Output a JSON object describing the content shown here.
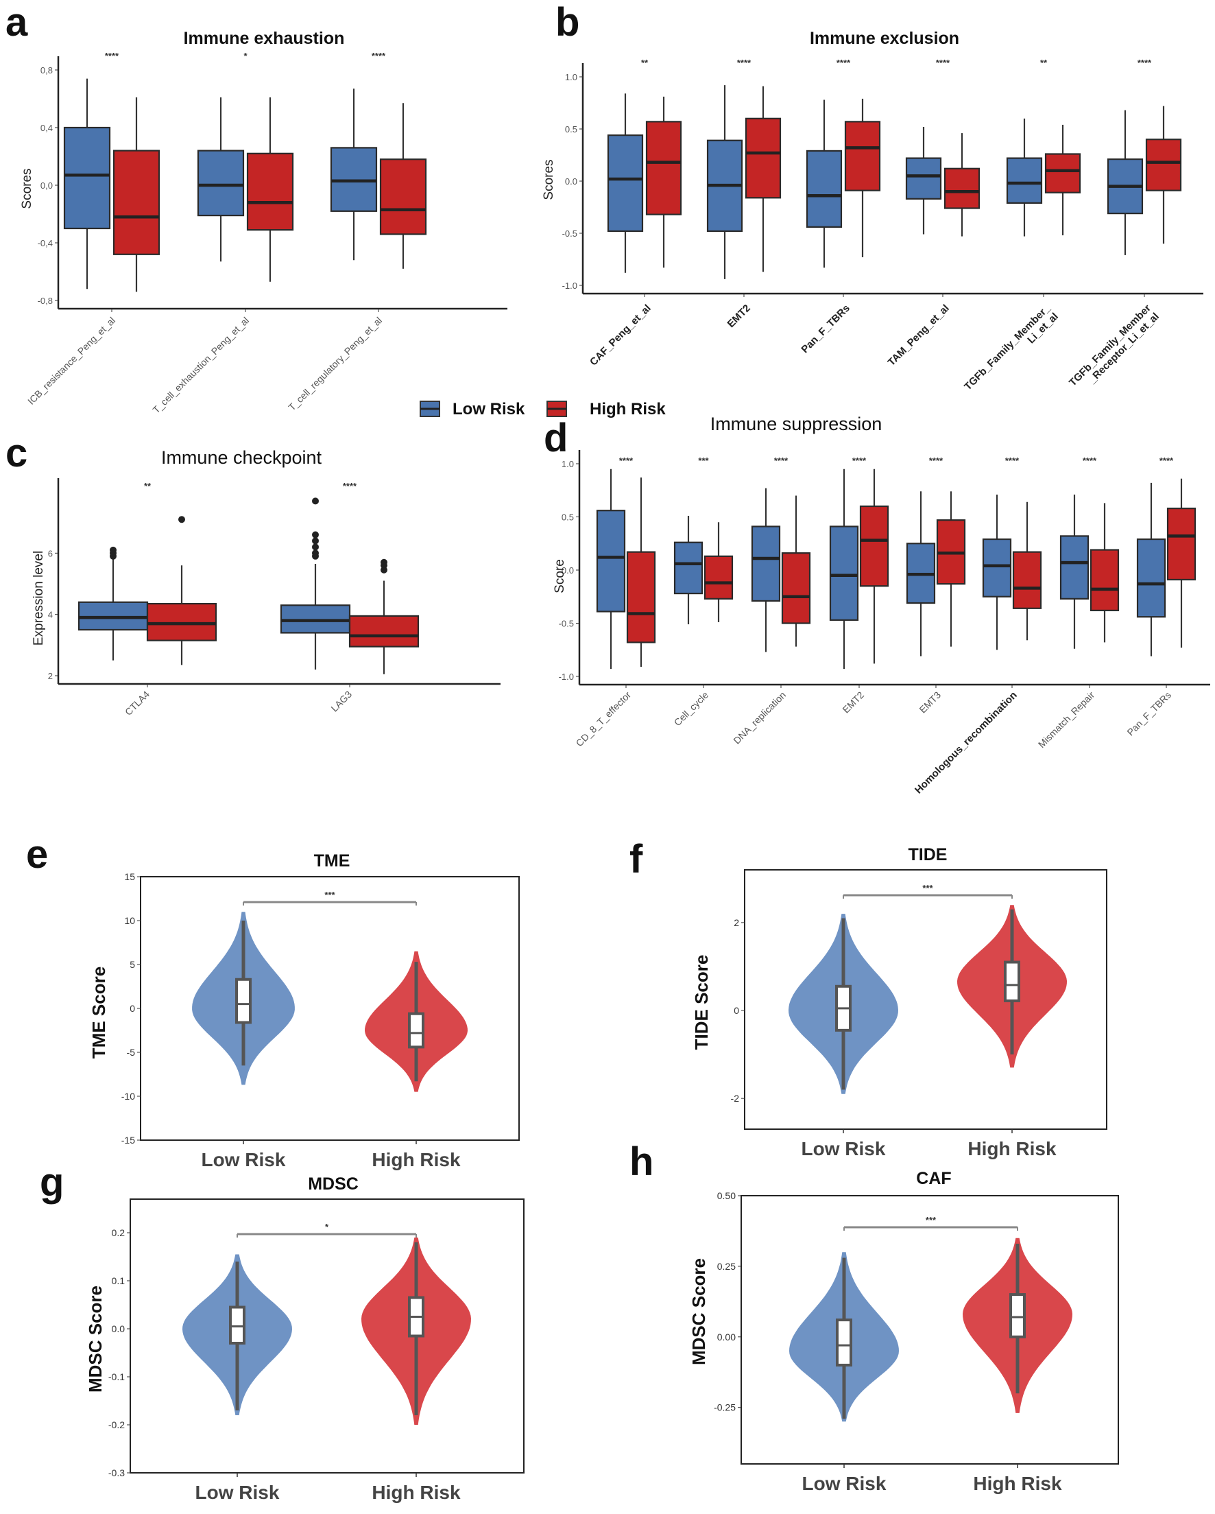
{
  "figure": {
    "panels": [
      "a",
      "b",
      "c",
      "d",
      "e",
      "f",
      "g",
      "h"
    ],
    "legend": {
      "low_label": "Low Risk",
      "high_label": "High Risk",
      "low_color": "#4a74ad",
      "high_color": "#c42525"
    }
  },
  "chart_data": [
    {
      "id": "a",
      "type": "box",
      "title": "Immune exhaustion",
      "ylabel": "Scores",
      "xlabel": "",
      "ylim": [
        -0.8,
        0.8
      ],
      "yticks": [
        -0.8,
        -0.4,
        0.0,
        0.4,
        0.8
      ],
      "ytick_labels": [
        "-0,8",
        "-0,4",
        "0,0",
        "0,4",
        "0,8"
      ],
      "categories": [
        "ICB_resistance_Peng_et_al",
        "T_cell_exhaustion_Peng_et_al",
        "T_cell_regulatory_Peng_et_al"
      ],
      "significance": [
        "****",
        "*",
        "****"
      ],
      "series": [
        {
          "name": "Low Risk",
          "boxes": [
            [
              -0.72,
              -0.3,
              0.07,
              0.4,
              0.74
            ],
            [
              -0.53,
              -0.21,
              0.0,
              0.24,
              0.61
            ],
            [
              -0.52,
              -0.18,
              0.03,
              0.26,
              0.67
            ]
          ]
        },
        {
          "name": "High Risk",
          "boxes": [
            [
              -0.74,
              -0.48,
              -0.22,
              0.24,
              0.61
            ],
            [
              -0.67,
              -0.31,
              -0.12,
              0.22,
              0.61
            ],
            [
              -0.58,
              -0.34,
              -0.17,
              0.18,
              0.57
            ]
          ]
        }
      ]
    },
    {
      "id": "b",
      "type": "box",
      "title": "Immune exclusion",
      "ylabel": "Scores",
      "xlabel": "",
      "ylim": [
        -1.0,
        1.0
      ],
      "yticks": [
        -1.0,
        -0.5,
        0.0,
        0.5,
        1.0
      ],
      "ytick_labels": [
        "-1.0",
        "-0.5",
        "0.0",
        "0.5",
        "1.0"
      ],
      "categories": [
        "CAF_Peng_et_al",
        "EMT2",
        "Pan_F_TBRs",
        "TAM_Peng_et_al",
        "TGFb_Family_Member_\nLi_et_al",
        "TGFb_Family_Member\n_Receptor_Li_et_al"
      ],
      "significance": [
        "**",
        "****",
        "****",
        "****",
        "**",
        "****"
      ],
      "series": [
        {
          "name": "Low Risk",
          "boxes": [
            [
              -0.88,
              -0.48,
              0.02,
              0.44,
              0.84
            ],
            [
              -0.94,
              -0.48,
              -0.04,
              0.39,
              0.92
            ],
            [
              -0.83,
              -0.44,
              -0.14,
              0.29,
              0.78
            ],
            [
              -0.51,
              -0.17,
              0.05,
              0.22,
              0.52
            ],
            [
              -0.53,
              -0.21,
              -0.02,
              0.22,
              0.6
            ],
            [
              -0.71,
              -0.31,
              -0.05,
              0.21,
              0.68
            ]
          ]
        },
        {
          "name": "High Risk",
          "boxes": [
            [
              -0.83,
              -0.32,
              0.18,
              0.57,
              0.81
            ],
            [
              -0.87,
              -0.16,
              0.27,
              0.6,
              0.91
            ],
            [
              -0.73,
              -0.09,
              0.32,
              0.57,
              0.79
            ],
            [
              -0.53,
              -0.26,
              -0.1,
              0.12,
              0.46
            ],
            [
              -0.52,
              -0.11,
              0.1,
              0.26,
              0.54
            ],
            [
              -0.6,
              -0.09,
              0.18,
              0.4,
              0.72
            ]
          ]
        }
      ]
    },
    {
      "id": "c",
      "type": "box",
      "title": "Immune checkpoint",
      "ylabel": "Expression level",
      "xlabel": "",
      "ylim": [
        2,
        8
      ],
      "yticks": [
        2,
        4,
        6
      ],
      "ytick_labels": [
        "2",
        "4",
        "6"
      ],
      "categories": [
        "CTLA4",
        "LAG3"
      ],
      "significance": [
        "**",
        "****"
      ],
      "series": [
        {
          "name": "Low Risk",
          "boxes": [
            [
              2.5,
              3.5,
              3.9,
              4.4,
              5.85
            ],
            [
              2.2,
              3.4,
              3.8,
              4.3,
              5.65
            ]
          ],
          "outliers": [
            [
              5.9,
              6.0,
              6.1
            ],
            [
              5.9,
              6.0,
              6.2,
              6.4,
              6.6,
              7.7
            ]
          ]
        },
        {
          "name": "High Risk",
          "boxes": [
            [
              2.35,
              3.15,
              3.7,
              4.35,
              5.6
            ],
            [
              2.05,
              2.95,
              3.3,
              3.95,
              5.1
            ]
          ],
          "outliers": [
            [
              7.1
            ],
            [
              5.45,
              5.6,
              5.7
            ]
          ]
        }
      ]
    },
    {
      "id": "d",
      "type": "box",
      "title": "Immune suppression",
      "ylabel": "Score",
      "xlabel": "",
      "ylim": [
        -1.0,
        1.0
      ],
      "yticks": [
        -1.0,
        -0.5,
        0.0,
        0.5,
        1.0
      ],
      "ytick_labels": [
        "-1.0",
        "-0.5",
        "0.0",
        "0.5",
        "1.0"
      ],
      "categories": [
        "CD_8_T_effector",
        "Cell_cycle",
        "DNA_replication",
        "EMT2",
        "EMT3",
        "Homologous_recombination",
        "Mismatch_Repair",
        "Pan_F_TBRs"
      ],
      "significance": [
        "****",
        "***",
        "****",
        "****",
        "****",
        "****",
        "****",
        "****"
      ],
      "series": [
        {
          "name": "Low Risk",
          "boxes": [
            [
              -0.93,
              -0.39,
              0.12,
              0.56,
              0.95
            ],
            [
              -0.51,
              -0.22,
              0.06,
              0.26,
              0.51
            ],
            [
              -0.77,
              -0.29,
              0.11,
              0.41,
              0.77
            ],
            [
              -0.93,
              -0.47,
              -0.05,
              0.41,
              0.95
            ],
            [
              -0.81,
              -0.31,
              -0.04,
              0.25,
              0.74
            ],
            [
              -0.75,
              -0.25,
              0.04,
              0.29,
              0.71
            ],
            [
              -0.74,
              -0.27,
              0.07,
              0.32,
              0.71
            ],
            [
              -0.81,
              -0.44,
              -0.13,
              0.29,
              0.82
            ]
          ]
        },
        {
          "name": "High Risk",
          "boxes": [
            [
              -0.91,
              -0.68,
              -0.41,
              0.17,
              0.87
            ],
            [
              -0.49,
              -0.27,
              -0.12,
              0.13,
              0.45
            ],
            [
              -0.72,
              -0.5,
              -0.25,
              0.16,
              0.7
            ],
            [
              -0.88,
              -0.15,
              0.28,
              0.6,
              0.95
            ],
            [
              -0.72,
              -0.13,
              0.16,
              0.47,
              0.74
            ],
            [
              -0.66,
              -0.36,
              -0.17,
              0.17,
              0.64
            ],
            [
              -0.68,
              -0.38,
              -0.18,
              0.19,
              0.63
            ],
            [
              -0.73,
              -0.09,
              0.32,
              0.58,
              0.86
            ]
          ]
        }
      ]
    },
    {
      "id": "e",
      "type": "violin",
      "title": "TME",
      "ylabel": "TME Score",
      "xlabel": "",
      "ylim": [
        -15,
        15
      ],
      "yticks": [
        -15,
        -10,
        -5,
        0,
        5,
        10,
        15
      ],
      "ytick_labels": [
        "-15",
        "-10",
        "-5",
        "0",
        "5",
        "10",
        "15"
      ],
      "categories": [
        "Low Risk",
        "High Risk"
      ],
      "significance": "***",
      "series": [
        {
          "name": "Low Risk",
          "min": -8.7,
          "max": 11.0,
          "mode": 0.0,
          "q1": -1.6,
          "median": 0.5,
          "q3": 3.3,
          "whisker_low": -6.5,
          "whisker_high": 10.0
        },
        {
          "name": "High Risk",
          "min": -9.5,
          "max": 6.5,
          "mode": -2.5,
          "q1": -4.4,
          "median": -2.8,
          "q3": -0.6,
          "whisker_low": -8.3,
          "whisker_high": 5.3
        }
      ]
    },
    {
      "id": "f",
      "type": "violin",
      "title": "TIDE",
      "ylabel": "TIDE Score",
      "xlabel": "",
      "ylim": [
        -2.7,
        3.2
      ],
      "yticks": [
        -2,
        0,
        2
      ],
      "ytick_labels": [
        "-2",
        "0",
        "2"
      ],
      "categories": [
        "Low Risk",
        "High Risk"
      ],
      "significance": "***",
      "series": [
        {
          "name": "Low Risk",
          "min": -1.9,
          "max": 2.2,
          "mode": 0.0,
          "q1": -0.45,
          "median": 0.05,
          "q3": 0.55,
          "whisker_low": -1.8,
          "whisker_high": 2.1
        },
        {
          "name": "High Risk",
          "min": -1.3,
          "max": 2.4,
          "mode": 0.65,
          "q1": 0.22,
          "median": 0.58,
          "q3": 1.1,
          "whisker_low": -1.0,
          "whisker_high": 2.3
        }
      ]
    },
    {
      "id": "g",
      "type": "violin",
      "title": "MDSC",
      "ylabel": "MDSC Score",
      "xlabel": "",
      "ylim": [
        -0.3,
        0.27
      ],
      "yticks": [
        -0.3,
        -0.2,
        -0.1,
        0.0,
        0.1,
        0.2
      ],
      "ytick_labels": [
        "-0.3",
        "-0.2",
        "-0.1",
        "0.0",
        "0.1",
        "0.2"
      ],
      "categories": [
        "Low Risk",
        "High Risk"
      ],
      "significance": "*",
      "series": [
        {
          "name": "Low Risk",
          "min": -0.18,
          "max": 0.155,
          "mode": 0.0,
          "q1": -0.03,
          "median": 0.005,
          "q3": 0.045,
          "whisker_low": -0.17,
          "whisker_high": 0.14
        },
        {
          "name": "High Risk",
          "min": -0.2,
          "max": 0.19,
          "mode": 0.02,
          "q1": -0.015,
          "median": 0.025,
          "q3": 0.065,
          "whisker_low": -0.18,
          "whisker_high": 0.18
        }
      ]
    },
    {
      "id": "h",
      "type": "violin",
      "title": "CAF",
      "ylabel": "MDSC Score",
      "xlabel": "",
      "ylim": [
        -0.45,
        0.5
      ],
      "yticks": [
        -0.25,
        0.0,
        0.25,
        0.5
      ],
      "ytick_labels": [
        "-0.25",
        "0.00",
        "0.25",
        "0.50"
      ],
      "categories": [
        "Low Risk",
        "High Risk"
      ],
      "significance": "***",
      "series": [
        {
          "name": "Low Risk",
          "min": -0.3,
          "max": 0.3,
          "mode": -0.05,
          "q1": -0.1,
          "median": -0.03,
          "q3": 0.06,
          "whisker_low": -0.29,
          "whisker_high": 0.28
        },
        {
          "name": "High Risk",
          "min": -0.27,
          "max": 0.35,
          "mode": 0.08,
          "q1": 0.0,
          "median": 0.07,
          "q3": 0.15,
          "whisker_low": -0.2,
          "whisker_high": 0.33
        }
      ]
    }
  ]
}
